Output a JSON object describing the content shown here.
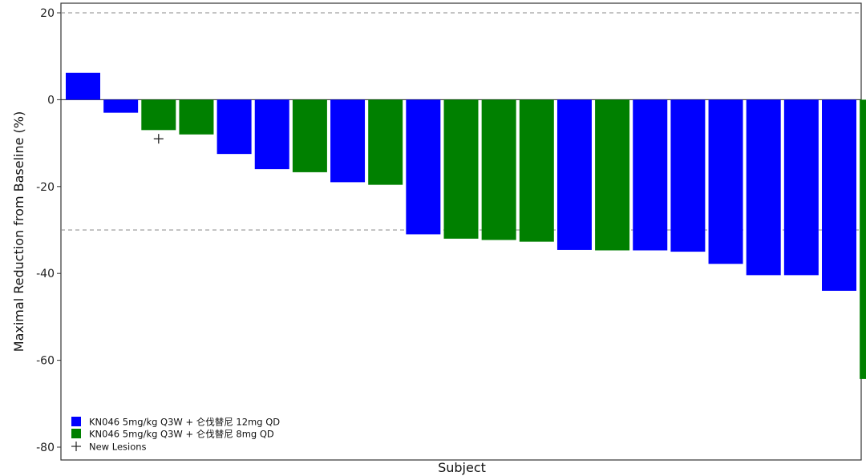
{
  "chart_data": {
    "type": "bar",
    "xlabel": "Subject",
    "ylabel": "Maximal Reduction from Baseline (%)",
    "ylim": [
      -80,
      20
    ],
    "yticks": [
      20,
      0,
      -20,
      -40,
      -60,
      -80
    ],
    "reference_lines": [
      20,
      -30
    ],
    "series": [
      {
        "name": "KN046 5mg/kg Q3W + 仑伐替尼 12mg QD",
        "color": "#0000ff"
      },
      {
        "name": "KN046 5mg/kg Q3W + 仑伐替尼 8mg QD",
        "color": "#008000"
      }
    ],
    "values": [
      6.2,
      -3,
      -7,
      -8,
      -12.5,
      -16,
      -16.7,
      -19,
      -19.6,
      -31,
      -32,
      -32.3,
      -32.7,
      -34.6,
      -34.7,
      -34.7,
      -35,
      -37.8,
      -40.4,
      -40.4,
      -44,
      -64.3
    ],
    "series_index": [
      0,
      0,
      1,
      1,
      0,
      0,
      1,
      0,
      1,
      0,
      1,
      1,
      1,
      0,
      1,
      0,
      0,
      0,
      0,
      0,
      0,
      1
    ],
    "new_lesions": [
      {
        "bar_index": 2,
        "y": -9
      }
    ],
    "legend": {
      "entries": [
        "KN046 5mg/kg Q3W + 仑伐替尼 12mg QD",
        "KN046 5mg/kg Q3W + 仑伐替尼 8mg QD",
        "New Lesions"
      ],
      "placement": "bottom-left"
    }
  }
}
